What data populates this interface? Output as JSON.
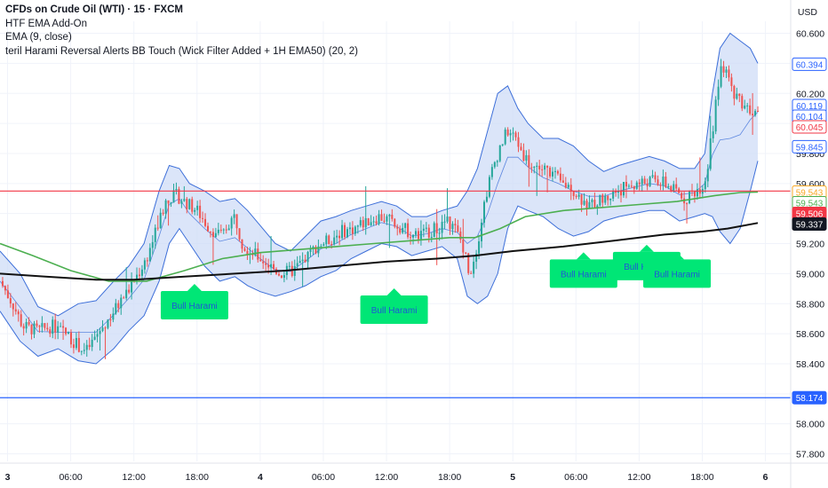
{
  "legend": {
    "title": "CFDs on Crude Oil (WTI) · 15 · FXCM",
    "line2": "HTF EMA Add-On",
    "line3": "EMA (9, close)",
    "line4": "teril Harami Reversal Alerts BB Touch (Wick Filter Added + 1H EMA50) (20, 2)"
  },
  "currency": "USD",
  "colors": {
    "up": "#26a69a",
    "down": "#ef5350",
    "bb_fill": "#cfdcf7",
    "bb_line": "#3d6fd9",
    "ema9": "#2a52b0",
    "ema50": "#4caf50",
    "htf_ema": "#111111",
    "red_hline": "#f23645",
    "blue_hline": "#2962ff",
    "harami_fill": "#00e676"
  },
  "chart_data": {
    "type": "candlestick",
    "ylim": [
      57.75,
      60.68
    ],
    "y_ticks": [
      "60.600",
      "60.400",
      "60.200",
      "60.000",
      "59.800",
      "59.600",
      "59.400",
      "59.200",
      "59.000",
      "58.800",
      "58.600",
      "58.400",
      "58.200",
      "58.000",
      "57.800"
    ],
    "x_ticks": [
      {
        "label": "3",
        "bold": true,
        "day": 0.0
      },
      {
        "label": "06:00",
        "bold": false,
        "day": 0.25
      },
      {
        "label": "12:00",
        "bold": false,
        "day": 0.5
      },
      {
        "label": "18:00",
        "bold": false,
        "day": 0.75
      },
      {
        "label": "4",
        "bold": true,
        "day": 1.0
      },
      {
        "label": "06:00",
        "bold": false,
        "day": 1.25
      },
      {
        "label": "12:00",
        "bold": false,
        "day": 1.5
      },
      {
        "label": "18:00",
        "bold": false,
        "day": 1.75
      },
      {
        "label": "5",
        "bold": true,
        "day": 2.0
      },
      {
        "label": "06:00",
        "bold": false,
        "day": 2.25
      },
      {
        "label": "12:00",
        "bold": false,
        "day": 2.5
      },
      {
        "label": "18:00",
        "bold": false,
        "day": 2.75
      },
      {
        "label": "6",
        "bold": true,
        "day": 3.0
      }
    ],
    "x_range_days": [
      -0.03,
      3.1
    ],
    "close_path": [
      [
        -0.03,
        58.95
      ],
      [
        0.02,
        58.8
      ],
      [
        0.06,
        58.65
      ],
      [
        0.12,
        58.62
      ],
      [
        0.18,
        58.65
      ],
      [
        0.23,
        58.6
      ],
      [
        0.28,
        58.52
      ],
      [
        0.31,
        58.48
      ],
      [
        0.35,
        58.58
      ],
      [
        0.4,
        58.7
      ],
      [
        0.45,
        58.82
      ],
      [
        0.5,
        58.95
      ],
      [
        0.55,
        59.1
      ],
      [
        0.6,
        59.35
      ],
      [
        0.63,
        59.5
      ],
      [
        0.67,
        59.52
      ],
      [
        0.7,
        59.48
      ],
      [
        0.75,
        59.42
      ],
      [
        0.8,
        59.3
      ],
      [
        0.85,
        59.25
      ],
      [
        0.88,
        59.35
      ],
      [
        0.9,
        59.38
      ],
      [
        0.93,
        59.2
      ],
      [
        0.96,
        59.15
      ],
      [
        1.0,
        59.1
      ],
      [
        1.04,
        59.05
      ],
      [
        1.08,
        59.0
      ],
      [
        1.13,
        59.02
      ],
      [
        1.18,
        59.1
      ],
      [
        1.22,
        59.18
      ],
      [
        1.27,
        59.22
      ],
      [
        1.32,
        59.28
      ],
      [
        1.37,
        59.3
      ],
      [
        1.42,
        59.35
      ],
      [
        1.47,
        59.38
      ],
      [
        1.52,
        59.35
      ],
      [
        1.57,
        59.3
      ],
      [
        1.62,
        59.25
      ],
      [
        1.66,
        59.28
      ],
      [
        1.7,
        59.3
      ],
      [
        1.74,
        59.35
      ],
      [
        1.77,
        59.3
      ],
      [
        1.8,
        59.2
      ],
      [
        1.83,
        59.0
      ],
      [
        1.86,
        59.2
      ],
      [
        1.89,
        59.5
      ],
      [
        1.92,
        59.7
      ],
      [
        1.95,
        59.85
      ],
      [
        1.98,
        59.95
      ],
      [
        2.01,
        59.9
      ],
      [
        2.04,
        59.8
      ],
      [
        2.07,
        59.72
      ],
      [
        2.11,
        59.7
      ],
      [
        2.15,
        59.68
      ],
      [
        2.19,
        59.6
      ],
      [
        2.23,
        59.58
      ],
      [
        2.27,
        59.5
      ],
      [
        2.3,
        59.45
      ],
      [
        2.33,
        59.48
      ],
      [
        2.37,
        59.5
      ],
      [
        2.41,
        59.55
      ],
      [
        2.45,
        59.58
      ],
      [
        2.5,
        59.6
      ],
      [
        2.55,
        59.62
      ],
      [
        2.6,
        59.6
      ],
      [
        2.64,
        59.55
      ],
      [
        2.68,
        59.5
      ],
      [
        2.72,
        59.55
      ],
      [
        2.76,
        59.6
      ],
      [
        2.79,
        59.95
      ],
      [
        2.81,
        60.2
      ],
      [
        2.83,
        60.4
      ],
      [
        2.86,
        60.25
      ],
      [
        2.9,
        60.15
      ],
      [
        2.94,
        60.1
      ],
      [
        2.97,
        60.05
      ]
    ],
    "bb_upper_path": [
      [
        -0.03,
        59.15
      ],
      [
        0.05,
        59.0
      ],
      [
        0.12,
        58.78
      ],
      [
        0.2,
        58.72
      ],
      [
        0.28,
        58.8
      ],
      [
        0.35,
        58.82
      ],
      [
        0.42,
        58.95
      ],
      [
        0.48,
        59.05
      ],
      [
        0.54,
        59.2
      ],
      [
        0.6,
        59.55
      ],
      [
        0.64,
        59.72
      ],
      [
        0.68,
        59.7
      ],
      [
        0.72,
        59.6
      ],
      [
        0.78,
        59.55
      ],
      [
        0.84,
        59.48
      ],
      [
        0.9,
        59.5
      ],
      [
        0.95,
        59.42
      ],
      [
        1.0,
        59.32
      ],
      [
        1.06,
        59.2
      ],
      [
        1.12,
        59.15
      ],
      [
        1.18,
        59.25
      ],
      [
        1.24,
        59.35
      ],
      [
        1.3,
        59.38
      ],
      [
        1.36,
        59.42
      ],
      [
        1.42,
        59.45
      ],
      [
        1.48,
        59.48
      ],
      [
        1.54,
        59.45
      ],
      [
        1.6,
        59.38
      ],
      [
        1.66,
        59.38
      ],
      [
        1.72,
        59.42
      ],
      [
        1.78,
        59.45
      ],
      [
        1.82,
        59.55
      ],
      [
        1.86,
        59.7
      ],
      [
        1.9,
        59.95
      ],
      [
        1.94,
        60.2
      ],
      [
        1.98,
        60.25
      ],
      [
        2.02,
        60.1
      ],
      [
        2.06,
        60.0
      ],
      [
        2.12,
        59.9
      ],
      [
        2.18,
        59.9
      ],
      [
        2.24,
        59.85
      ],
      [
        2.3,
        59.75
      ],
      [
        2.36,
        59.68
      ],
      [
        2.42,
        59.72
      ],
      [
        2.48,
        59.75
      ],
      [
        2.54,
        59.78
      ],
      [
        2.6,
        59.75
      ],
      [
        2.66,
        59.7
      ],
      [
        2.72,
        59.7
      ],
      [
        2.76,
        59.8
      ],
      [
        2.79,
        60.2
      ],
      [
        2.82,
        60.5
      ],
      [
        2.86,
        60.6
      ],
      [
        2.9,
        60.55
      ],
      [
        2.94,
        60.5
      ],
      [
        2.97,
        60.4
      ]
    ],
    "bb_lower_path": [
      [
        -0.03,
        58.75
      ],
      [
        0.05,
        58.55
      ],
      [
        0.12,
        58.45
      ],
      [
        0.2,
        58.5
      ],
      [
        0.28,
        58.42
      ],
      [
        0.35,
        58.4
      ],
      [
        0.42,
        58.5
      ],
      [
        0.48,
        58.62
      ],
      [
        0.54,
        58.72
      ],
      [
        0.6,
        58.95
      ],
      [
        0.64,
        59.2
      ],
      [
        0.68,
        59.3
      ],
      [
        0.72,
        59.2
      ],
      [
        0.78,
        59.05
      ],
      [
        0.84,
        58.95
      ],
      [
        0.9,
        58.98
      ],
      [
        0.95,
        58.92
      ],
      [
        1.0,
        58.88
      ],
      [
        1.06,
        58.85
      ],
      [
        1.12,
        58.88
      ],
      [
        1.18,
        58.92
      ],
      [
        1.24,
        58.98
      ],
      [
        1.3,
        59.02
      ],
      [
        1.36,
        59.1
      ],
      [
        1.42,
        59.15
      ],
      [
        1.48,
        59.2
      ],
      [
        1.54,
        59.18
      ],
      [
        1.6,
        59.12
      ],
      [
        1.66,
        59.15
      ],
      [
        1.72,
        59.18
      ],
      [
        1.78,
        59.1
      ],
      [
        1.82,
        58.85
      ],
      [
        1.86,
        58.8
      ],
      [
        1.9,
        58.85
      ],
      [
        1.94,
        59.0
      ],
      [
        1.98,
        59.3
      ],
      [
        2.02,
        59.45
      ],
      [
        2.06,
        59.42
      ],
      [
        2.12,
        59.38
      ],
      [
        2.18,
        59.3
      ],
      [
        2.24,
        59.25
      ],
      [
        2.3,
        59.28
      ],
      [
        2.36,
        59.35
      ],
      [
        2.42,
        59.38
      ],
      [
        2.48,
        59.4
      ],
      [
        2.54,
        59.42
      ],
      [
        2.6,
        59.42
      ],
      [
        2.66,
        59.35
      ],
      [
        2.72,
        59.38
      ],
      [
        2.76,
        59.4
      ],
      [
        2.79,
        59.38
      ],
      [
        2.82,
        59.28
      ],
      [
        2.86,
        59.2
      ],
      [
        2.9,
        59.3
      ],
      [
        2.94,
        59.55
      ],
      [
        2.97,
        59.75
      ]
    ],
    "ema50_path": [
      [
        -0.03,
        59.2
      ],
      [
        0.1,
        59.12
      ],
      [
        0.25,
        59.02
      ],
      [
        0.4,
        58.95
      ],
      [
        0.55,
        58.95
      ],
      [
        0.7,
        59.02
      ],
      [
        0.85,
        59.1
      ],
      [
        1.0,
        59.14
      ],
      [
        1.15,
        59.16
      ],
      [
        1.3,
        59.18
      ],
      [
        1.45,
        59.2
      ],
      [
        1.6,
        59.22
      ],
      [
        1.75,
        59.24
      ],
      [
        1.85,
        59.24
      ],
      [
        1.95,
        59.3
      ],
      [
        2.05,
        59.38
      ],
      [
        2.2,
        59.42
      ],
      [
        2.35,
        59.44
      ],
      [
        2.5,
        59.46
      ],
      [
        2.65,
        59.48
      ],
      [
        2.8,
        59.52
      ],
      [
        2.9,
        59.54
      ],
      [
        2.97,
        59.543
      ]
    ],
    "htf_ema_path": [
      [
        -0.03,
        59.0
      ],
      [
        0.15,
        58.98
      ],
      [
        0.35,
        58.96
      ],
      [
        0.5,
        58.96
      ],
      [
        0.7,
        58.98
      ],
      [
        0.9,
        59.0
      ],
      [
        1.1,
        59.02
      ],
      [
        1.3,
        59.05
      ],
      [
        1.5,
        59.08
      ],
      [
        1.7,
        59.1
      ],
      [
        1.85,
        59.12
      ],
      [
        2.0,
        59.15
      ],
      [
        2.2,
        59.18
      ],
      [
        2.4,
        59.22
      ],
      [
        2.6,
        59.26
      ],
      [
        2.75,
        59.28
      ],
      [
        2.85,
        59.3
      ],
      [
        2.97,
        59.337
      ]
    ],
    "hlines": [
      {
        "name": "red-level",
        "value": 59.55,
        "color": "#f23645"
      },
      {
        "name": "blue-level",
        "value": 58.174,
        "color": "#2962ff"
      }
    ],
    "harami_labels": [
      {
        "text": "Bull Harami",
        "day": 0.74,
        "price": 58.79
      },
      {
        "text": "Bull Harami",
        "day": 1.53,
        "price": 58.76
      },
      {
        "text": "Bull Harami",
        "day": 2.28,
        "price": 59.0
      },
      {
        "text": "Bull Harami",
        "day": 2.53,
        "price": 59.05
      },
      {
        "text": "Bull Harami",
        "day": 2.65,
        "price": 59.0
      }
    ],
    "price_tags": [
      {
        "label": "60.394",
        "price": 60.394,
        "style": "outline",
        "color": "#2962ff"
      },
      {
        "label": "60.119",
        "price": 60.119,
        "style": "outline",
        "color": "#2962ff"
      },
      {
        "label": "60.104",
        "price": 60.104,
        "style": "outline",
        "color": "#2962ff"
      },
      {
        "label": "60.045",
        "price": 60.045,
        "style": "outline",
        "color": "#f23645"
      },
      {
        "label": "59.845",
        "price": 59.845,
        "style": "outline",
        "color": "#2962ff"
      },
      {
        "label": "59.543",
        "price": 59.543,
        "style": "outline",
        "color": "#f9a825"
      },
      {
        "label": "59.543",
        "price": 59.543,
        "style": "outline",
        "color": "#4caf50"
      },
      {
        "label": "59.506",
        "price": 59.506,
        "style": "filled",
        "color": "#f23645"
      },
      {
        "label": "59.337",
        "price": 59.337,
        "style": "filled",
        "color": "#131722"
      },
      {
        "label": "58.174",
        "price": 58.174,
        "style": "filled",
        "color": "#2962ff"
      }
    ]
  }
}
